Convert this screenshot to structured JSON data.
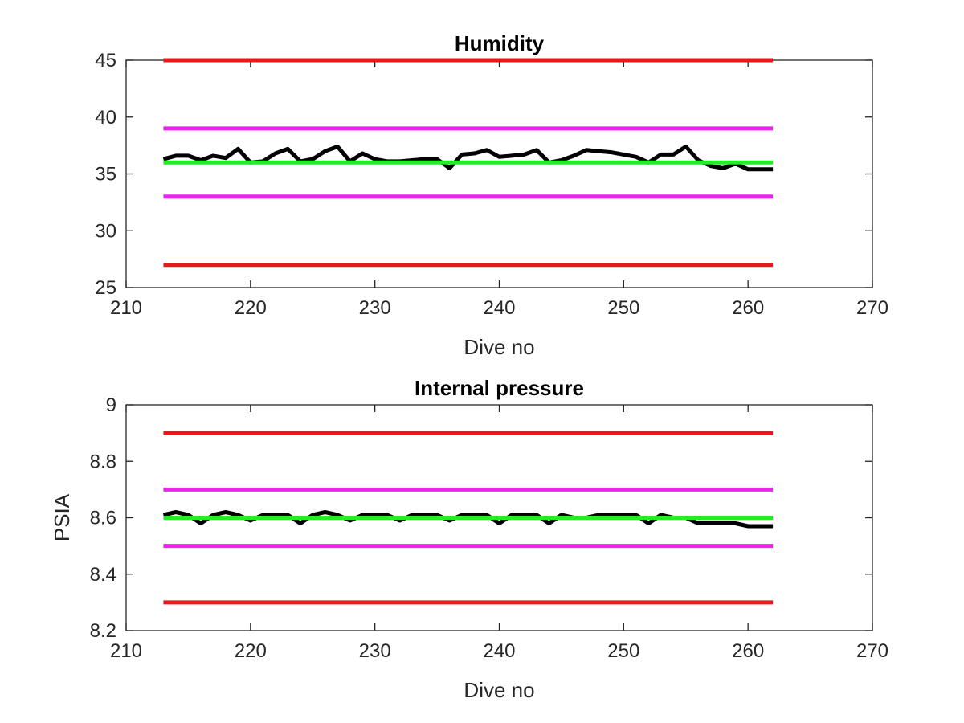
{
  "chart_data": [
    {
      "type": "line",
      "title": "Humidity",
      "xlabel": "Dive no",
      "ylabel": "",
      "xlim": [
        210,
        270
      ],
      "ylim": [
        25,
        45
      ],
      "xticks": [
        210,
        220,
        230,
        240,
        250,
        260,
        270
      ],
      "yticks": [
        25,
        30,
        35,
        40,
        45
      ],
      "x_tick_labels": [
        "210",
        "220",
        "230",
        "240",
        "250",
        "260",
        "270"
      ],
      "y_tick_labels": [
        "25",
        "30",
        "35",
        "40",
        "45"
      ],
      "grid": false,
      "series": [
        {
          "color": "#e41a1c",
          "x": [
            213,
            262
          ],
          "y": [
            45,
            45
          ]
        },
        {
          "color": "#e41a1c",
          "x": [
            213,
            262
          ],
          "y": [
            27,
            27
          ]
        },
        {
          "color": "#ee22ee",
          "x": [
            213,
            262
          ],
          "y": [
            39,
            39
          ]
        },
        {
          "color": "#ee22ee",
          "x": [
            213,
            262
          ],
          "y": [
            33,
            33
          ]
        },
        {
          "color": "#000000",
          "x": [
            213,
            214,
            215,
            216,
            217,
            218,
            219,
            220,
            221,
            222,
            223,
            224,
            225,
            226,
            227,
            228,
            229,
            230,
            231,
            232,
            233,
            234,
            235,
            236,
            237,
            238,
            239,
            240,
            241,
            242,
            243,
            244,
            245,
            246,
            247,
            248,
            249,
            250,
            251,
            252,
            253,
            254,
            255,
            256,
            257,
            258,
            259,
            260,
            261,
            262
          ],
          "y": [
            36.3,
            36.6,
            36.6,
            36.2,
            36.6,
            36.4,
            37.2,
            36.0,
            36.1,
            36.8,
            37.2,
            36.1,
            36.3,
            37.0,
            37.4,
            36.1,
            36.8,
            36.3,
            36.1,
            36.1,
            36.2,
            36.3,
            36.3,
            35.5,
            36.7,
            36.8,
            37.1,
            36.5,
            36.6,
            36.7,
            37.1,
            36.0,
            36.2,
            36.6,
            37.1,
            37.0,
            36.9,
            36.7,
            36.5,
            36.0,
            36.7,
            36.7,
            37.4,
            36.2,
            35.7,
            35.5,
            35.9,
            35.4,
            35.4,
            35.4
          ]
        },
        {
          "color": "#22ee22",
          "x": [
            213,
            262
          ],
          "y": [
            36,
            36
          ]
        }
      ]
    },
    {
      "type": "line",
      "title": "Internal pressure",
      "xlabel": "Dive no",
      "ylabel": "PSIA",
      "xlim": [
        210,
        270
      ],
      "ylim": [
        8.2,
        9.0
      ],
      "xticks": [
        210,
        220,
        230,
        240,
        250,
        260,
        270
      ],
      "yticks": [
        8.2,
        8.4,
        8.6,
        8.8,
        9.0
      ],
      "x_tick_labels": [
        "210",
        "220",
        "230",
        "240",
        "250",
        "260",
        "270"
      ],
      "y_tick_labels": [
        "8.2",
        "8.4",
        "8.6",
        "8.8",
        "9"
      ],
      "grid": false,
      "series": [
        {
          "color": "#e41a1c",
          "x": [
            213,
            262
          ],
          "y": [
            8.9,
            8.9
          ]
        },
        {
          "color": "#e41a1c",
          "x": [
            213,
            262
          ],
          "y": [
            8.3,
            8.3
          ]
        },
        {
          "color": "#ee22ee",
          "x": [
            213,
            262
          ],
          "y": [
            8.7,
            8.7
          ]
        },
        {
          "color": "#ee22ee",
          "x": [
            213,
            262
          ],
          "y": [
            8.5,
            8.5
          ]
        },
        {
          "color": "#000000",
          "x": [
            213,
            214,
            215,
            216,
            217,
            218,
            219,
            220,
            221,
            222,
            223,
            224,
            225,
            226,
            227,
            228,
            229,
            230,
            231,
            232,
            233,
            234,
            235,
            236,
            237,
            238,
            239,
            240,
            241,
            242,
            243,
            244,
            245,
            246,
            247,
            248,
            249,
            250,
            251,
            252,
            253,
            254,
            255,
            256,
            257,
            258,
            259,
            260,
            261,
            262
          ],
          "y": [
            8.61,
            8.62,
            8.61,
            8.58,
            8.61,
            8.62,
            8.61,
            8.59,
            8.61,
            8.61,
            8.61,
            8.58,
            8.61,
            8.62,
            8.61,
            8.59,
            8.61,
            8.61,
            8.61,
            8.59,
            8.61,
            8.61,
            8.61,
            8.59,
            8.61,
            8.61,
            8.61,
            8.58,
            8.61,
            8.61,
            8.61,
            8.58,
            8.61,
            8.6,
            8.6,
            8.61,
            8.61,
            8.61,
            8.61,
            8.58,
            8.61,
            8.6,
            8.6,
            8.58,
            8.58,
            8.58,
            8.58,
            8.57,
            8.57,
            8.57
          ]
        },
        {
          "color": "#22ee22",
          "x": [
            213,
            262
          ],
          "y": [
            8.6,
            8.6
          ]
        }
      ]
    }
  ]
}
